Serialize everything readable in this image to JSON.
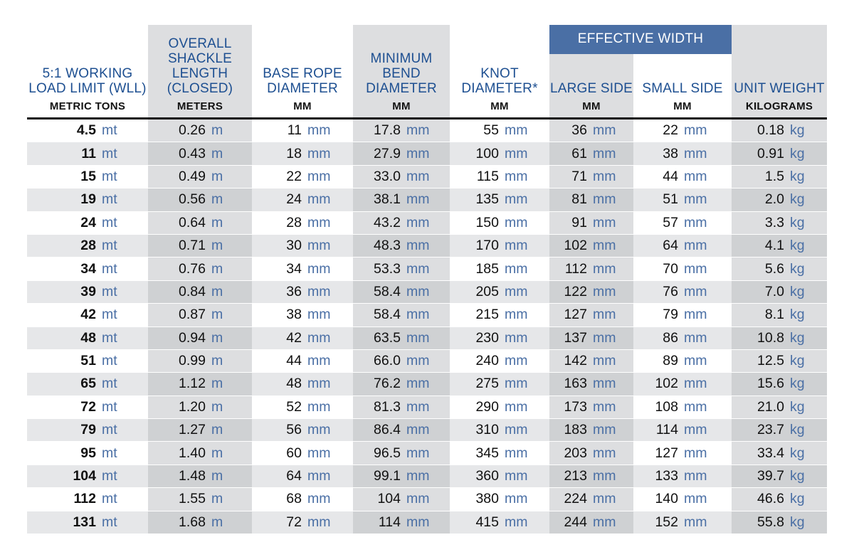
{
  "colors": {
    "header_text": "#1d4f91",
    "unit_text": "#4a6fa5",
    "group_bar": "#4a6fa5"
  },
  "header": {
    "wll": {
      "title": "5:1 WORKING LOAD LIMIT (WLL)",
      "unit": "METRIC TONS"
    },
    "shackle": {
      "title": "OVERALL SHACKLE LENGTH (CLOSED)",
      "unit": "METERS"
    },
    "rope": {
      "title": "BASE ROPE DIAMETER",
      "unit": "MM"
    },
    "bend": {
      "title": "MINIMUM BEND DIAMETER",
      "unit": "MM"
    },
    "knot": {
      "title": "KNOT DIAMETER*",
      "unit": "MM"
    },
    "effective_width": "EFFECTIVE WIDTH",
    "large": {
      "title": "LARGE SIDE",
      "unit": "MM"
    },
    "small": {
      "title": "SMALL SIDE",
      "unit": "MM"
    },
    "weight": {
      "title": "UNIT WEIGHT",
      "unit": "KILOGRAMS"
    }
  },
  "units": [
    "mt",
    "m",
    "mm",
    "mm",
    "mm",
    "mm",
    "mm",
    "kg"
  ],
  "rows": [
    [
      "4.5",
      "0.26",
      "11",
      "17.8",
      "55",
      "36",
      "22",
      "0.18"
    ],
    [
      "11",
      "0.43",
      "18",
      "27.9",
      "100",
      "61",
      "38",
      "0.91"
    ],
    [
      "15",
      "0.49",
      "22",
      "33.0",
      "115",
      "71",
      "44",
      "1.5"
    ],
    [
      "19",
      "0.56",
      "24",
      "38.1",
      "135",
      "81",
      "51",
      "2.0"
    ],
    [
      "24",
      "0.64",
      "28",
      "43.2",
      "150",
      "91",
      "57",
      "3.3"
    ],
    [
      "28",
      "0.71",
      "30",
      "48.3",
      "170",
      "102",
      "64",
      "4.1"
    ],
    [
      "34",
      "0.76",
      "34",
      "53.3",
      "185",
      "112",
      "70",
      "5.6"
    ],
    [
      "39",
      "0.84",
      "36",
      "58.4",
      "205",
      "122",
      "76",
      "7.0"
    ],
    [
      "42",
      "0.87",
      "38",
      "58.4",
      "215",
      "127",
      "79",
      "8.1"
    ],
    [
      "48",
      "0.94",
      "42",
      "63.5",
      "230",
      "137",
      "86",
      "10.8"
    ],
    [
      "51",
      "0.99",
      "44",
      "66.0",
      "240",
      "142",
      "89",
      "12.5"
    ],
    [
      "65",
      "1.12",
      "48",
      "76.2",
      "275",
      "163",
      "102",
      "15.6"
    ],
    [
      "72",
      "1.20",
      "52",
      "81.3",
      "290",
      "173",
      "108",
      "21.0"
    ],
    [
      "79",
      "1.27",
      "56",
      "86.4",
      "310",
      "183",
      "114",
      "23.7"
    ],
    [
      "95",
      "1.40",
      "60",
      "96.5",
      "345",
      "203",
      "127",
      "33.4"
    ],
    [
      "104",
      "1.48",
      "64",
      "99.1",
      "360",
      "213",
      "133",
      "39.7"
    ],
    [
      "112",
      "1.55",
      "68",
      "104",
      "380",
      "224",
      "140",
      "46.6"
    ],
    [
      "131",
      "1.68",
      "72",
      "114",
      "415",
      "244",
      "152",
      "55.8"
    ]
  ]
}
